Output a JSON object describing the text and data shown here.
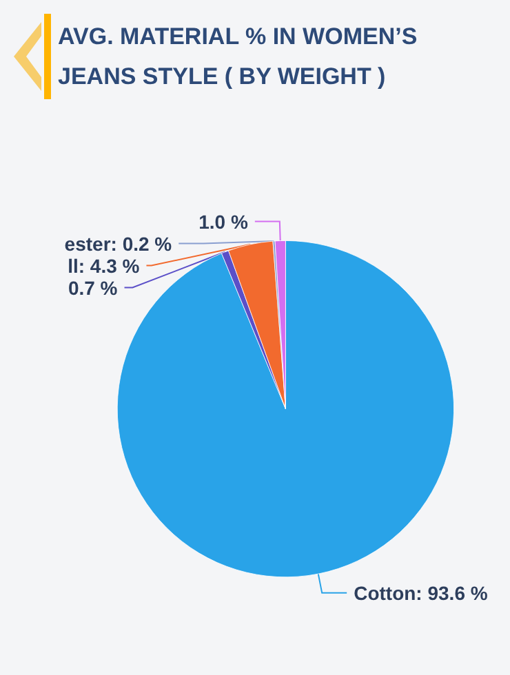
{
  "chart_data": {
    "type": "pie",
    "title": "AVG. MATERIAL % IN WOMEN’S JEANS STYLE ( BY WEIGHT )",
    "categories": [
      "Cotton",
      null,
      "ll",
      "ester",
      null
    ],
    "values": [
      93.6,
      0.7,
      4.3,
      0.2,
      1.0
    ],
    "colors": [
      "#29a3e8",
      "#5b4fc8",
      "#f26a2e",
      "#8a9fd0",
      "#d36ef0"
    ],
    "value_labels": [
      "93.6 %",
      "0.7 %",
      "4.3 %",
      "0.2 %",
      "1.0 %"
    ],
    "legend": false
  }
}
